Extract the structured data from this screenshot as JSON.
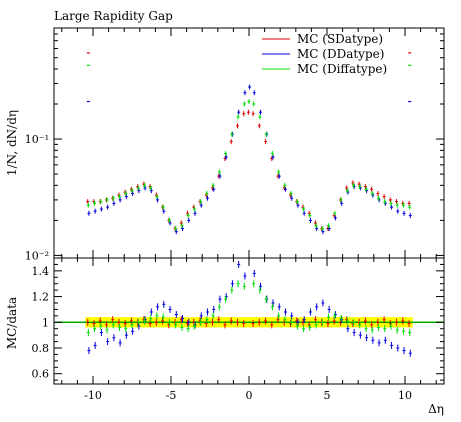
{
  "chart_data": [
    {
      "type": "scatter",
      "title": "Large Rapidity Gap",
      "xlabel": "",
      "ylabel": "1/N, dN/dη",
      "yscale": "log",
      "xlim": [
        -12.5,
        12.5
      ],
      "ylim": [
        0.0095,
        0.9
      ],
      "ytick_labels": [
        "10⁻²",
        "10⁻¹"
      ],
      "ytick_values": [
        0.01,
        0.1
      ],
      "legend": "top-right",
      "x": [
        -10.3,
        -9.9,
        -9.5,
        -9.1,
        -8.7,
        -8.3,
        -7.9,
        -7.5,
        -7.1,
        -6.7,
        -6.3,
        -5.9,
        -5.5,
        -5.1,
        -4.7,
        -4.3,
        -3.9,
        -3.5,
        -3.1,
        -2.7,
        -2.3,
        -1.9,
        -1.5,
        -1.1,
        -0.7,
        -0.3,
        0.0,
        0.3,
        0.7,
        1.1,
        1.5,
        1.9,
        2.3,
        2.7,
        3.1,
        3.5,
        3.9,
        4.3,
        4.7,
        5.1,
        5.5,
        5.9,
        6.3,
        6.7,
        7.1,
        7.5,
        7.9,
        8.3,
        8.7,
        9.1,
        9.5,
        9.9,
        10.3
      ],
      "series": [
        {
          "name": "MC (SDatype)",
          "color": "#dd0000",
          "values": [
            0.029,
            0.029,
            0.029,
            0.03,
            0.031,
            0.033,
            0.035,
            0.037,
            0.039,
            0.041,
            0.039,
            0.033,
            0.026,
            0.02,
            0.017,
            0.019,
            0.023,
            0.026,
            0.029,
            0.033,
            0.038,
            0.048,
            0.068,
            0.095,
            0.13,
            0.165,
            0.17,
            0.165,
            0.13,
            0.095,
            0.068,
            0.048,
            0.038,
            0.033,
            0.029,
            0.026,
            0.023,
            0.019,
            0.017,
            0.017,
            0.022,
            0.03,
            0.038,
            0.042,
            0.041,
            0.039,
            0.037,
            0.034,
            0.032,
            0.03,
            0.029,
            0.028,
            0.028
          ],
          "overflow_marker": 0.55
        },
        {
          "name": "MC (DDatype)",
          "color": "#0000dd",
          "values": [
            0.023,
            0.024,
            0.025,
            0.026,
            0.028,
            0.03,
            0.032,
            0.034,
            0.036,
            0.038,
            0.036,
            0.03,
            0.024,
            0.019,
            0.016,
            0.017,
            0.02,
            0.023,
            0.027,
            0.031,
            0.037,
            0.048,
            0.07,
            0.11,
            0.17,
            0.25,
            0.28,
            0.25,
            0.17,
            0.11,
            0.07,
            0.048,
            0.037,
            0.031,
            0.027,
            0.023,
            0.02,
            0.017,
            0.016,
            0.017,
            0.021,
            0.028,
            0.035,
            0.039,
            0.038,
            0.036,
            0.033,
            0.03,
            0.028,
            0.026,
            0.024,
            0.023,
            0.022
          ],
          "overflow_marker": 0.21
        },
        {
          "name": "MC (Diffatype)",
          "color": "#00dd00",
          "values": [
            0.027,
            0.028,
            0.029,
            0.03,
            0.031,
            0.032,
            0.034,
            0.036,
            0.038,
            0.04,
            0.038,
            0.032,
            0.026,
            0.02,
            0.017,
            0.018,
            0.022,
            0.025,
            0.029,
            0.034,
            0.04,
            0.052,
            0.075,
            0.11,
            0.155,
            0.2,
            0.21,
            0.2,
            0.155,
            0.11,
            0.075,
            0.052,
            0.04,
            0.034,
            0.029,
            0.025,
            0.022,
            0.018,
            0.017,
            0.018,
            0.023,
            0.03,
            0.036,
            0.04,
            0.039,
            0.037,
            0.034,
            0.031,
            0.029,
            0.028,
            0.027,
            0.027,
            0.026
          ],
          "overflow_marker": 0.43
        }
      ]
    },
    {
      "type": "scatter",
      "title": "",
      "xlabel": "Δη",
      "ylabel": "MC/data",
      "xlim": [
        -12.5,
        12.5
      ],
      "ylim": [
        0.52,
        1.5
      ],
      "xtick_labels": [
        "-10",
        "-5",
        "0",
        "5",
        "10"
      ],
      "xtick_values": [
        -10,
        -5,
        0,
        5,
        10
      ],
      "ytick_labels": [
        "0.6",
        "0.8",
        "1",
        "1.2",
        "1.4"
      ],
      "ytick_values": [
        0.6,
        0.8,
        1.0,
        1.2,
        1.4
      ],
      "reference_line": 1.0,
      "reference_color": "#00aa00",
      "band": {
        "x": [
          -10.5,
          10.5
        ],
        "y": [
          0.96,
          1.04
        ],
        "color": "#ffff00"
      },
      "x": [
        -10.3,
        -9.9,
        -9.5,
        -9.1,
        -8.7,
        -8.3,
        -7.9,
        -7.5,
        -7.1,
        -6.7,
        -6.3,
        -5.9,
        -5.5,
        -5.1,
        -4.7,
        -4.3,
        -3.9,
        -3.5,
        -3.1,
        -2.7,
        -2.3,
        -1.9,
        -1.5,
        -1.1,
        -0.7,
        -0.3,
        0.3,
        0.7,
        1.1,
        1.5,
        1.9,
        2.3,
        2.7,
        3.1,
        3.5,
        3.9,
        4.3,
        4.7,
        5.1,
        5.5,
        5.9,
        6.3,
        6.7,
        7.1,
        7.5,
        7.9,
        8.3,
        8.7,
        9.1,
        9.5,
        9.9,
        10.3
      ],
      "series": [
        {
          "name": "MC (SDatype)",
          "color": "#dd0000",
          "values": [
            1.0,
            0.99,
            1.01,
            0.98,
            1.02,
            1.0,
            0.99,
            1.01,
            1.0,
            1.02,
            0.99,
            1.0,
            1.01,
            0.98,
            1.0,
            1.02,
            0.99,
            1.0,
            1.01,
            0.99,
            1.0,
            1.02,
            0.98,
            1.01,
            1.0,
            0.99,
            0.99,
            1.0,
            1.01,
            0.98,
            1.02,
            1.0,
            0.99,
            1.01,
            1.0,
            0.98,
            1.02,
            1.0,
            0.99,
            1.01,
            1.0,
            1.02,
            0.99,
            1.0,
            1.01,
            0.98,
            1.0,
            1.02,
            0.99,
            1.0,
            1.01,
            0.99
          ]
        },
        {
          "name": "MC (DDatype)",
          "color": "#0000dd",
          "values": [
            0.78,
            0.82,
            0.92,
            0.85,
            0.88,
            0.84,
            0.9,
            0.93,
            0.97,
            1.02,
            1.08,
            1.12,
            1.14,
            1.1,
            1.06,
            1.03,
            1.0,
            0.98,
            1.05,
            1.08,
            1.1,
            1.18,
            1.2,
            1.3,
            1.45,
            1.36,
            1.38,
            1.28,
            1.18,
            1.15,
            1.12,
            1.08,
            1.05,
            1.0,
            1.02,
            1.08,
            1.12,
            1.15,
            1.1,
            1.06,
            1.02,
            0.95,
            0.92,
            0.9,
            0.88,
            0.86,
            0.84,
            0.86,
            0.82,
            0.8,
            0.78,
            0.76
          ]
        },
        {
          "name": "MC (Diffatype)",
          "color": "#00dd00",
          "values": [
            0.92,
            0.95,
            0.97,
            0.94,
            0.98,
            0.96,
            0.95,
            0.98,
            1.0,
            1.01,
            1.03,
            1.05,
            1.04,
            1.0,
            0.98,
            0.96,
            0.95,
            0.97,
            1.0,
            1.02,
            1.05,
            1.12,
            1.18,
            1.25,
            1.3,
            1.28,
            1.3,
            1.25,
            1.18,
            1.12,
            1.05,
            1.02,
            1.0,
            0.97,
            0.95,
            0.96,
            0.98,
            1.0,
            1.04,
            1.05,
            1.03,
            1.01,
            1.0,
            0.98,
            0.95,
            0.94,
            0.96,
            0.95,
            0.97,
            0.94,
            0.93,
            0.92
          ]
        }
      ]
    }
  ]
}
